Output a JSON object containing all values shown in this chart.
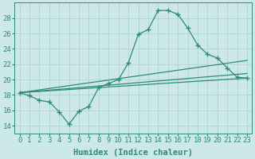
{
  "xlabel": "Humidex (Indice chaleur)",
  "x_ticks": [
    0,
    1,
    2,
    3,
    4,
    5,
    6,
    7,
    8,
    9,
    10,
    11,
    12,
    13,
    14,
    15,
    16,
    17,
    18,
    19,
    20,
    21,
    22,
    23
  ],
  "x_tick_labels": [
    "0",
    "1",
    "2",
    "3",
    "4",
    "5",
    "6",
    "7",
    "8",
    "9",
    "10",
    "11",
    "12",
    "13",
    "14",
    "15",
    "16",
    "17",
    "18",
    "19",
    "20",
    "21",
    "22",
    "23"
  ],
  "ylim_min": 13,
  "ylim_max": 30,
  "yticks": [
    14,
    16,
    18,
    20,
    22,
    24,
    26,
    28
  ],
  "line1_x": [
    0,
    1,
    2,
    3,
    4,
    5,
    6,
    7,
    8,
    9,
    10,
    11,
    12,
    13,
    14,
    15,
    16,
    17,
    18,
    19,
    20,
    21,
    22,
    23
  ],
  "line1_y": [
    18.3,
    17.9,
    17.3,
    17.1,
    15.8,
    14.2,
    15.9,
    16.5,
    19.0,
    19.5,
    20.0,
    22.2,
    25.9,
    26.5,
    29.0,
    29.0,
    28.5,
    26.7,
    24.5,
    23.3,
    22.8,
    21.5,
    20.3,
    20.2
  ],
  "line2_x": [
    0,
    23
  ],
  "line2_y": [
    18.3,
    22.5
  ],
  "line3_x": [
    0,
    23
  ],
  "line3_y": [
    18.3,
    20.8
  ],
  "line4_x": [
    0,
    23
  ],
  "line4_y": [
    18.3,
    20.2
  ],
  "line_color": "#2e8b74",
  "bg_color": "#cce8e8",
  "grid_color": "#b0d4d4",
  "label_fontsize": 7.5,
  "tick_fontsize": 6.5
}
